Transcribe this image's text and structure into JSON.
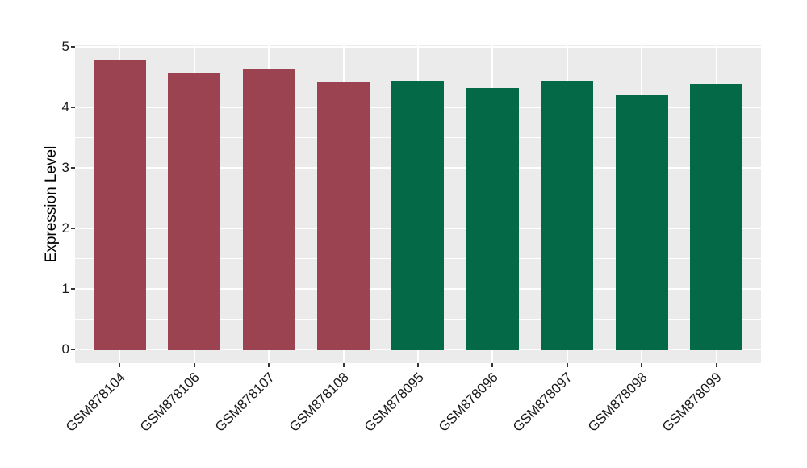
{
  "chart_data": {
    "type": "bar",
    "title": "",
    "xlabel": "",
    "ylabel": "Expression Level",
    "categories": [
      "GSM878104",
      "GSM878106",
      "GSM878107",
      "GSM878108",
      "GSM878095",
      "GSM878096",
      "GSM878097",
      "GSM878098",
      "GSM878099"
    ],
    "values": [
      4.79,
      4.57,
      4.63,
      4.41,
      4.43,
      4.32,
      4.44,
      4.2,
      4.39
    ],
    "bar_colors": [
      "#9B4350",
      "#9B4350",
      "#9B4350",
      "#9B4350",
      "#036946",
      "#036946",
      "#036946",
      "#036946",
      "#036946"
    ],
    "group_colors": {
      "maroon_group": "#9B4350",
      "green_group": "#036946"
    },
    "ylim": [
      0,
      5
    ],
    "yticks": [
      "0",
      "1",
      "2",
      "3",
      "4",
      "5"
    ],
    "minor_grid_steps": [
      0.5,
      1.5,
      2.5,
      3.5,
      4.5
    ],
    "grid": "white horizontal major+minor lines, white vertical major line per category",
    "legend": "none",
    "panel_background": "#EBEBEB",
    "grid_color": "#FFFFFF",
    "tick_color": "#333333",
    "axis_text_color": "#1A1A1A"
  }
}
